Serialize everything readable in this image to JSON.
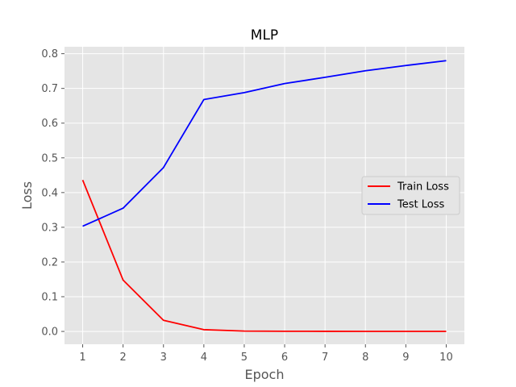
{
  "chart_data": {
    "type": "line",
    "title": "MLP",
    "xlabel": "Epoch",
    "ylabel": "Loss",
    "x": [
      1,
      2,
      3,
      4,
      5,
      6,
      7,
      8,
      9,
      10
    ],
    "xlim": [
      0.55,
      10.45
    ],
    "ylim": [
      -0.037,
      0.82
    ],
    "xticks": [
      1,
      2,
      3,
      4,
      5,
      6,
      7,
      8,
      9,
      10
    ],
    "yticks": [
      0.0,
      0.1,
      0.2,
      0.3,
      0.4,
      0.5,
      0.6,
      0.7,
      0.8
    ],
    "ytick_labels": [
      "0.0",
      "0.1",
      "0.2",
      "0.3",
      "0.4",
      "0.5",
      "0.6",
      "0.7",
      "0.8"
    ],
    "grid": true,
    "legend_position": "center-right",
    "background_color": "#e5e5e5",
    "grid_color": "#ffffff",
    "series": [
      {
        "name": "Train Loss",
        "color": "#ff0000",
        "values": [
          0.436,
          0.148,
          0.032,
          0.005,
          0.001,
          0.0005,
          0.0003,
          0.0002,
          0.0001,
          0.0001
        ]
      },
      {
        "name": "Test Loss",
        "color": "#0000ff",
        "values": [
          0.303,
          0.355,
          0.472,
          0.668,
          0.688,
          0.714,
          0.732,
          0.751,
          0.766,
          0.78
        ]
      }
    ]
  }
}
